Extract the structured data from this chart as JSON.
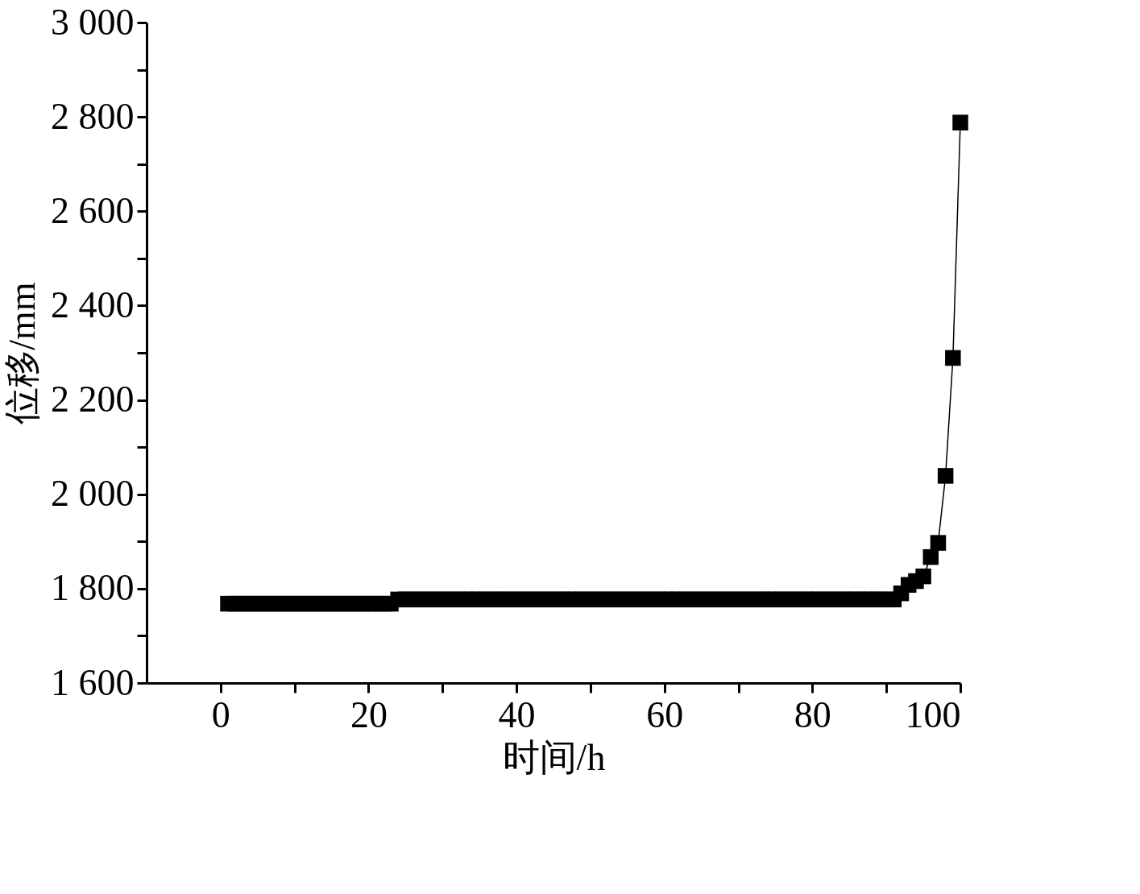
{
  "chart_data": {
    "type": "line",
    "xlabel": "时间/h",
    "ylabel": "位移/mm",
    "x": [
      1,
      2,
      3,
      4,
      5,
      6,
      7,
      8,
      9,
      10,
      11,
      12,
      13,
      14,
      15,
      16,
      17,
      18,
      19,
      20,
      21,
      22,
      23,
      24,
      25,
      26,
      27,
      28,
      29,
      30,
      31,
      32,
      33,
      34,
      35,
      36,
      37,
      38,
      39,
      40,
      41,
      42,
      43,
      44,
      45,
      46,
      47,
      48,
      49,
      50,
      51,
      52,
      53,
      54,
      55,
      56,
      57,
      58,
      59,
      60,
      61,
      62,
      63,
      64,
      65,
      66,
      67,
      68,
      69,
      70,
      71,
      72,
      73,
      74,
      75,
      76,
      77,
      78,
      79,
      80,
      81,
      82,
      83,
      84,
      85,
      86,
      87,
      88,
      89,
      90,
      91,
      92,
      93,
      94,
      95,
      96,
      97,
      98,
      99,
      100
    ],
    "series": [
      {
        "color": "#000000",
        "values": [
          1768,
          1768,
          1768,
          1768,
          1768,
          1768,
          1768,
          1768,
          1768,
          1768,
          1768,
          1768,
          1768,
          1768,
          1768,
          1768,
          1768,
          1768,
          1768,
          1768,
          1768,
          1768,
          1768,
          1777,
          1777,
          1777,
          1777,
          1777,
          1777,
          1777,
          1777,
          1777,
          1777,
          1777,
          1777,
          1777,
          1777,
          1777,
          1777,
          1777,
          1777,
          1777,
          1777,
          1777,
          1777,
          1777,
          1777,
          1777,
          1777,
          1777,
          1777,
          1777,
          1777,
          1777,
          1777,
          1777,
          1777,
          1777,
          1777,
          1777,
          1777,
          1777,
          1777,
          1777,
          1777,
          1777,
          1777,
          1777,
          1777,
          1777,
          1777,
          1777,
          1777,
          1777,
          1777,
          1777,
          1777,
          1777,
          1777,
          1777,
          1777,
          1777,
          1777,
          1777,
          1777,
          1777,
          1777,
          1777,
          1777,
          1777,
          1777,
          1790,
          1808,
          1816,
          1826,
          1867,
          1897,
          2039,
          2289,
          2788
        ]
      }
    ],
    "marker": "square",
    "line_style": "solid",
    "grid": false,
    "xlim": [
      -10,
      100
    ],
    "ylim": [
      1600,
      3000
    ],
    "xticks": [
      0,
      {
        "value": 10,
        "label": null
      },
      20,
      {
        "value": 30,
        "label": null
      },
      40,
      {
        "value": 50,
        "label": null
      },
      60,
      {
        "value": 70,
        "label": null
      },
      80,
      {
        "value": 90,
        "label": null
      },
      100
    ],
    "yticks": [
      {
        "value": 1600,
        "label": "1 600"
      },
      {
        "value": 1700,
        "label": null
      },
      {
        "value": 1800,
        "label": "1 800"
      },
      {
        "value": 1900,
        "label": null
      },
      {
        "value": 2000,
        "label": "2 000"
      },
      {
        "value": 2100,
        "label": null
      },
      {
        "value": 2200,
        "label": "2 200"
      },
      {
        "value": 2300,
        "label": null
      },
      {
        "value": 2400,
        "label": "2 400"
      },
      {
        "value": 2500,
        "label": null
      },
      {
        "value": 2600,
        "label": "2 600"
      },
      {
        "value": 2700,
        "label": null
      },
      {
        "value": 2800,
        "label": "2 800"
      },
      {
        "value": 2900,
        "label": null
      },
      {
        "value": 3000,
        "label": "3 000"
      }
    ]
  }
}
